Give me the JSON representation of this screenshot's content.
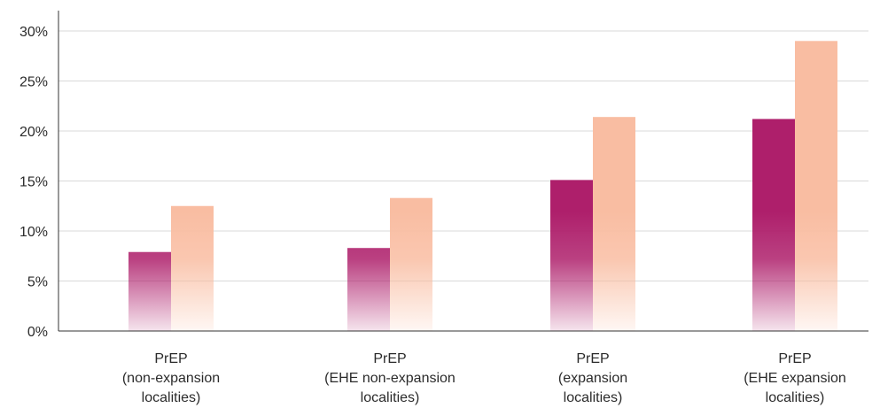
{
  "chart_data": {
    "type": "bar",
    "categories": [
      [
        "PrEP",
        "(non-expansion",
        "localities)"
      ],
      [
        "PrEP",
        "(EHE non-expansion",
        "localities)"
      ],
      [
        "PrEP",
        "(expansion",
        "localities)"
      ],
      [
        "PrEP",
        "(EHE expansion",
        "localities)"
      ]
    ],
    "series": [
      {
        "values": [
          7.9,
          8.3,
          15.1,
          21.2
        ],
        "color": "#ae1f6b"
      },
      {
        "values": [
          12.5,
          13.3,
          21.4,
          29.0
        ],
        "color": "#f9bda2"
      }
    ],
    "ylim": [
      0,
      30
    ],
    "yticks": [
      0,
      5,
      10,
      15,
      20,
      25,
      30
    ],
    "ytick_labels": [
      "0%",
      "5%",
      "10%",
      "15%",
      "20%",
      "25%",
      "30%"
    ],
    "grid": true,
    "legend": "none",
    "title": "",
    "xlabel": "",
    "ylabel": ""
  }
}
